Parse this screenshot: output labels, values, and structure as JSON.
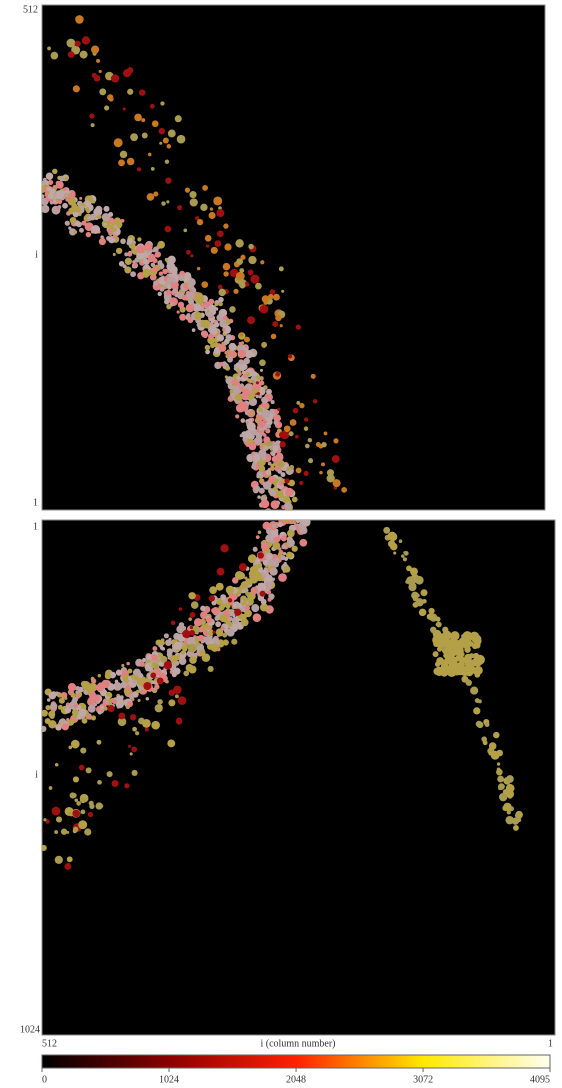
{
  "top_panel": {
    "y_top_label": "512",
    "y_mid_label": "i",
    "y_bottom_label": "1"
  },
  "bottom_panel": {
    "y_top_label": "1",
    "y_mid_label": "i",
    "y_bottom_label": "1024"
  },
  "x_axis": {
    "left_label": "512",
    "title": "i (column number)",
    "right_label": "1"
  },
  "colorbar": {
    "ticks": [
      0,
      1024,
      2048,
      3072,
      4095
    ]
  }
}
